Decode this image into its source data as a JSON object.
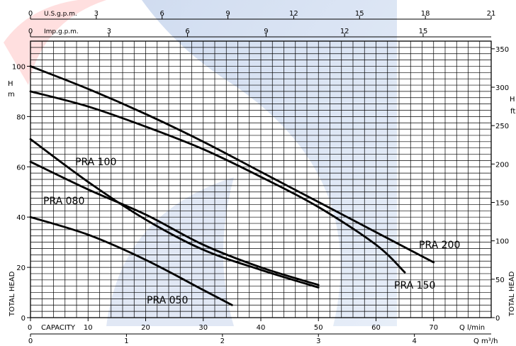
{
  "chart_data": {
    "type": "line",
    "title": "",
    "x_primary": {
      "label_left": "CAPACITY",
      "unit": "Q l/min",
      "ticks": [
        0,
        10,
        20,
        30,
        40,
        50,
        60,
        70
      ],
      "range": [
        0,
        80
      ]
    },
    "x_secondary": {
      "unit": "Q m³/h",
      "ticks": [
        0,
        1,
        2,
        3,
        4
      ],
      "range": [
        0,
        4.8
      ]
    },
    "x_top1": {
      "label": "U.S.g.p.m.",
      "ticks": [
        0,
        3,
        6,
        9,
        12,
        15,
        18,
        21
      ],
      "range": [
        0,
        21
      ]
    },
    "x_top2": {
      "label": "Imp.g.p.m.",
      "ticks": [
        0,
        3,
        6,
        9,
        12,
        15
      ],
      "range": [
        0,
        17.6
      ]
    },
    "y_left": {
      "unit_h": "H",
      "unit_m": "m",
      "axis_label": "TOTAL HEAD",
      "ticks": [
        0,
        20,
        40,
        60,
        80,
        100
      ],
      "range": [
        0,
        110
      ]
    },
    "y_right": {
      "unit_h": "H",
      "unit_ft": "ft",
      "axis_label": "TOTAL HEAD",
      "ticks": [
        0,
        50,
        100,
        150,
        200,
        250,
        300,
        350
      ],
      "range": [
        0,
        360
      ]
    },
    "grid": true,
    "series": [
      {
        "name": "PRA 200",
        "x": [
          0,
          10,
          20,
          30,
          40,
          50,
          60,
          70
        ],
        "y": [
          100,
          91,
          81,
          70,
          58,
          46,
          34,
          22
        ]
      },
      {
        "name": "PRA 150",
        "x": [
          0,
          10,
          20,
          30,
          40,
          50,
          60,
          65
        ],
        "y": [
          90,
          84,
          76,
          67,
          56,
          44,
          29,
          18
        ]
      },
      {
        "name": "PRA 100",
        "x": [
          0,
          10,
          20,
          30,
          40,
          50
        ],
        "y": [
          71,
          54,
          39,
          27,
          19,
          12
        ]
      },
      {
        "name": "PRA 080",
        "x": [
          0,
          10,
          20,
          30,
          40,
          50
        ],
        "y": [
          62,
          51,
          41,
          29,
          20,
          13
        ]
      },
      {
        "name": "PRA 050",
        "x": [
          0,
          10,
          20,
          30,
          35
        ],
        "y": [
          40,
          33,
          23,
          11,
          5
        ]
      }
    ]
  }
}
